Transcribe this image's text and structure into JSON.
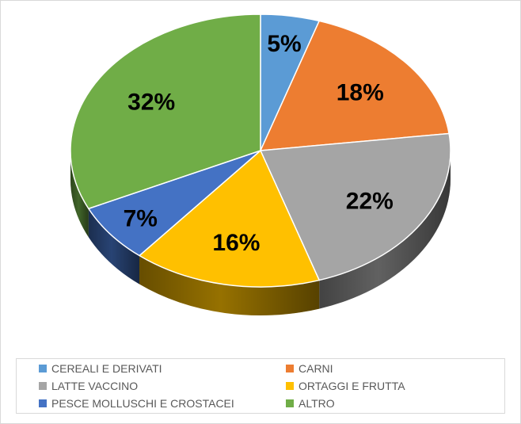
{
  "chart_data": {
    "type": "pie",
    "style": "3d-tilted",
    "legend_position": "bottom",
    "slices": [
      {
        "name": "CEREALI E DERIVATI",
        "value": 5,
        "label": "5%",
        "color": "#5B9BD5"
      },
      {
        "name": "CARNI",
        "value": 18,
        "label": "18%",
        "color": "#ED7D31"
      },
      {
        "name": "LATTE VACCINO",
        "value": 22,
        "label": "22%",
        "color": "#A5A5A5"
      },
      {
        "name": "ORTAGGI E FRUTTA",
        "value": 16,
        "label": "16%",
        "color": "#FFC000"
      },
      {
        "name": "PESCE MOLLUSCHI E CROSTACEI",
        "value": 7,
        "label": "7%",
        "color": "#4472C4"
      },
      {
        "name": "ALTRO",
        "value": 32,
        "label": "32%",
        "color": "#70AD47"
      }
    ],
    "legend_order": [
      0,
      1,
      2,
      3,
      4,
      5
    ]
  }
}
